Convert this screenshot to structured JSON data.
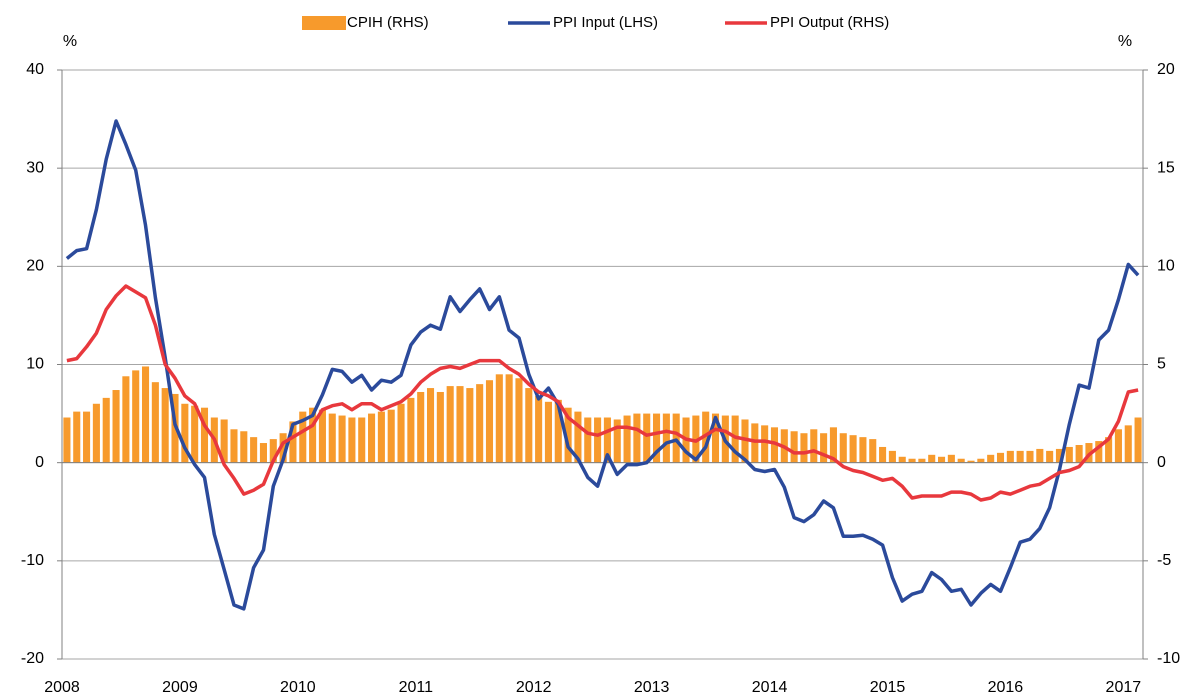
{
  "chart_data": {
    "type": "combo",
    "y_label": "%",
    "y2_label": "%",
    "categories": [
      "2008",
      null,
      null,
      null,
      null,
      null,
      null,
      null,
      null,
      null,
      null,
      null,
      "2009",
      null,
      null,
      null,
      null,
      null,
      null,
      null,
      null,
      null,
      null,
      null,
      "2010",
      null,
      null,
      null,
      null,
      null,
      null,
      null,
      null,
      null,
      null,
      null,
      "2011",
      null,
      null,
      null,
      null,
      null,
      null,
      null,
      null,
      null,
      null,
      null,
      "2012",
      null,
      null,
      null,
      null,
      null,
      null,
      null,
      null,
      null,
      null,
      null,
      "2013",
      null,
      null,
      null,
      null,
      null,
      null,
      null,
      null,
      null,
      null,
      null,
      "2014",
      null,
      null,
      null,
      null,
      null,
      null,
      null,
      null,
      null,
      null,
      null,
      "2015",
      null,
      null,
      null,
      null,
      null,
      null,
      null,
      null,
      null,
      null,
      null,
      "2016",
      null,
      null,
      null,
      null,
      null,
      null,
      null,
      null,
      null,
      null,
      null,
      "2017",
      null
    ],
    "ylim": [
      -20,
      40
    ],
    "yticks": [
      -20,
      -10,
      0,
      10,
      20,
      30,
      40
    ],
    "y2lim": [
      -10,
      20
    ],
    "y2ticks": [
      -10,
      -5,
      0,
      5,
      10,
      15,
      20
    ],
    "grid": true,
    "legend": "top",
    "series": [
      {
        "name": "CPIH (RHS)",
        "type": "bar",
        "axis": "y2",
        "color": "#f79a2c",
        "values": [
          2.3,
          2.6,
          2.6,
          3.0,
          3.3,
          3.7,
          4.4,
          4.7,
          4.9,
          4.1,
          3.8,
          3.5,
          3.0,
          2.9,
          2.8,
          2.3,
          2.2,
          1.7,
          1.6,
          1.3,
          1.0,
          1.2,
          1.5,
          2.1,
          2.6,
          2.8,
          2.7,
          2.5,
          2.4,
          2.3,
          2.3,
          2.5,
          2.6,
          2.7,
          3.0,
          3.3,
          3.6,
          3.8,
          3.6,
          3.9,
          3.9,
          3.8,
          4.0,
          4.2,
          4.5,
          4.5,
          4.3,
          3.8,
          3.4,
          3.1,
          3.2,
          2.8,
          2.6,
          2.3,
          2.3,
          2.3,
          2.2,
          2.4,
          2.5,
          2.5,
          2.5,
          2.5,
          2.5,
          2.3,
          2.4,
          2.6,
          2.5,
          2.4,
          2.4,
          2.2,
          2.0,
          1.9,
          1.8,
          1.7,
          1.6,
          1.5,
          1.7,
          1.5,
          1.8,
          1.5,
          1.4,
          1.3,
          1.2,
          0.8,
          0.6,
          0.3,
          0.2,
          0.2,
          0.4,
          0.3,
          0.4,
          0.2,
          0.1,
          0.2,
          0.4,
          0.5,
          0.6,
          0.6,
          0.6,
          0.7,
          0.6,
          0.7,
          0.8,
          0.9,
          1.0,
          1.1,
          1.3,
          1.7,
          1.9,
          2.3
        ]
      },
      {
        "name": "PPI Input (LHS)",
        "type": "line",
        "color": "#2b4a9b",
        "values": [
          20.8,
          21.6,
          21.8,
          25.8,
          30.9,
          34.8,
          32.4,
          29.8,
          24.2,
          16.8,
          10.7,
          3.9,
          1.5,
          -0.2,
          -1.5,
          -7.3,
          -10.9,
          -14.5,
          -14.9,
          -10.7,
          -8.9,
          -2.4,
          0.3,
          3.9,
          4.3,
          4.8,
          6.9,
          9.5,
          9.3,
          8.2,
          8.9,
          7.4,
          8.4,
          8.2,
          8.9,
          12.0,
          13.3,
          14.0,
          13.6,
          16.9,
          15.4,
          16.6,
          17.7,
          15.6,
          16.9,
          13.5,
          12.7,
          9.0,
          6.5,
          7.6,
          5.9,
          1.6,
          0.4,
          -1.5,
          -2.4,
          0.8,
          -1.2,
          -0.2,
          -0.2,
          0.0,
          1.1,
          2.0,
          2.3,
          1.1,
          0.3,
          1.6,
          4.6,
          2.2,
          1.1,
          0.3,
          -0.7,
          -0.9,
          -0.7,
          -2.5,
          -5.6,
          -6.0,
          -5.3,
          -3.9,
          -4.6,
          -7.5,
          -7.5,
          -7.4,
          -7.8,
          -8.4,
          -11.7,
          -14.1,
          -13.4,
          -13.1,
          -11.2,
          -11.9,
          -13.1,
          -12.9,
          -14.5,
          -13.3,
          -12.4,
          -13.1,
          -10.7,
          -8.1,
          -7.8,
          -6.7,
          -4.6,
          -0.7,
          3.9,
          7.9,
          7.6,
          12.5,
          13.5,
          16.6,
          20.2,
          19.1
        ]
      },
      {
        "name": "PPI Output (RHS)",
        "type": "line",
        "axis": "y2",
        "color": "#e8383d",
        "values": [
          5.2,
          5.3,
          5.9,
          6.6,
          7.8,
          8.5,
          9.0,
          8.7,
          8.4,
          7.0,
          5.0,
          4.3,
          3.4,
          3.0,
          1.9,
          1.2,
          -0.1,
          -0.8,
          -1.6,
          -1.4,
          -1.1,
          0.1,
          1.0,
          1.3,
          1.6,
          1.9,
          2.7,
          2.9,
          3.0,
          2.7,
          3.0,
          3.0,
          2.7,
          2.9,
          3.1,
          3.5,
          4.1,
          4.5,
          4.8,
          4.9,
          4.8,
          5.0,
          5.2,
          5.2,
          5.2,
          4.8,
          4.5,
          4.0,
          3.6,
          3.4,
          3.1,
          2.3,
          1.9,
          1.5,
          1.4,
          1.6,
          1.8,
          1.8,
          1.7,
          1.4,
          1.5,
          1.6,
          1.5,
          1.2,
          1.1,
          1.4,
          1.7,
          1.6,
          1.3,
          1.2,
          1.1,
          1.1,
          1.0,
          0.8,
          0.5,
          0.5,
          0.6,
          0.4,
          0.2,
          -0.2,
          -0.4,
          -0.5,
          -0.7,
          -0.9,
          -0.8,
          -1.2,
          -1.8,
          -1.7,
          -1.7,
          -1.7,
          -1.5,
          -1.5,
          -1.6,
          -1.9,
          -1.8,
          -1.5,
          -1.6,
          -1.4,
          -1.2,
          -1.1,
          -0.8,
          -0.5,
          -0.4,
          -0.2,
          0.4,
          0.8,
          1.2,
          2.1,
          3.6,
          3.7
        ]
      }
    ]
  }
}
